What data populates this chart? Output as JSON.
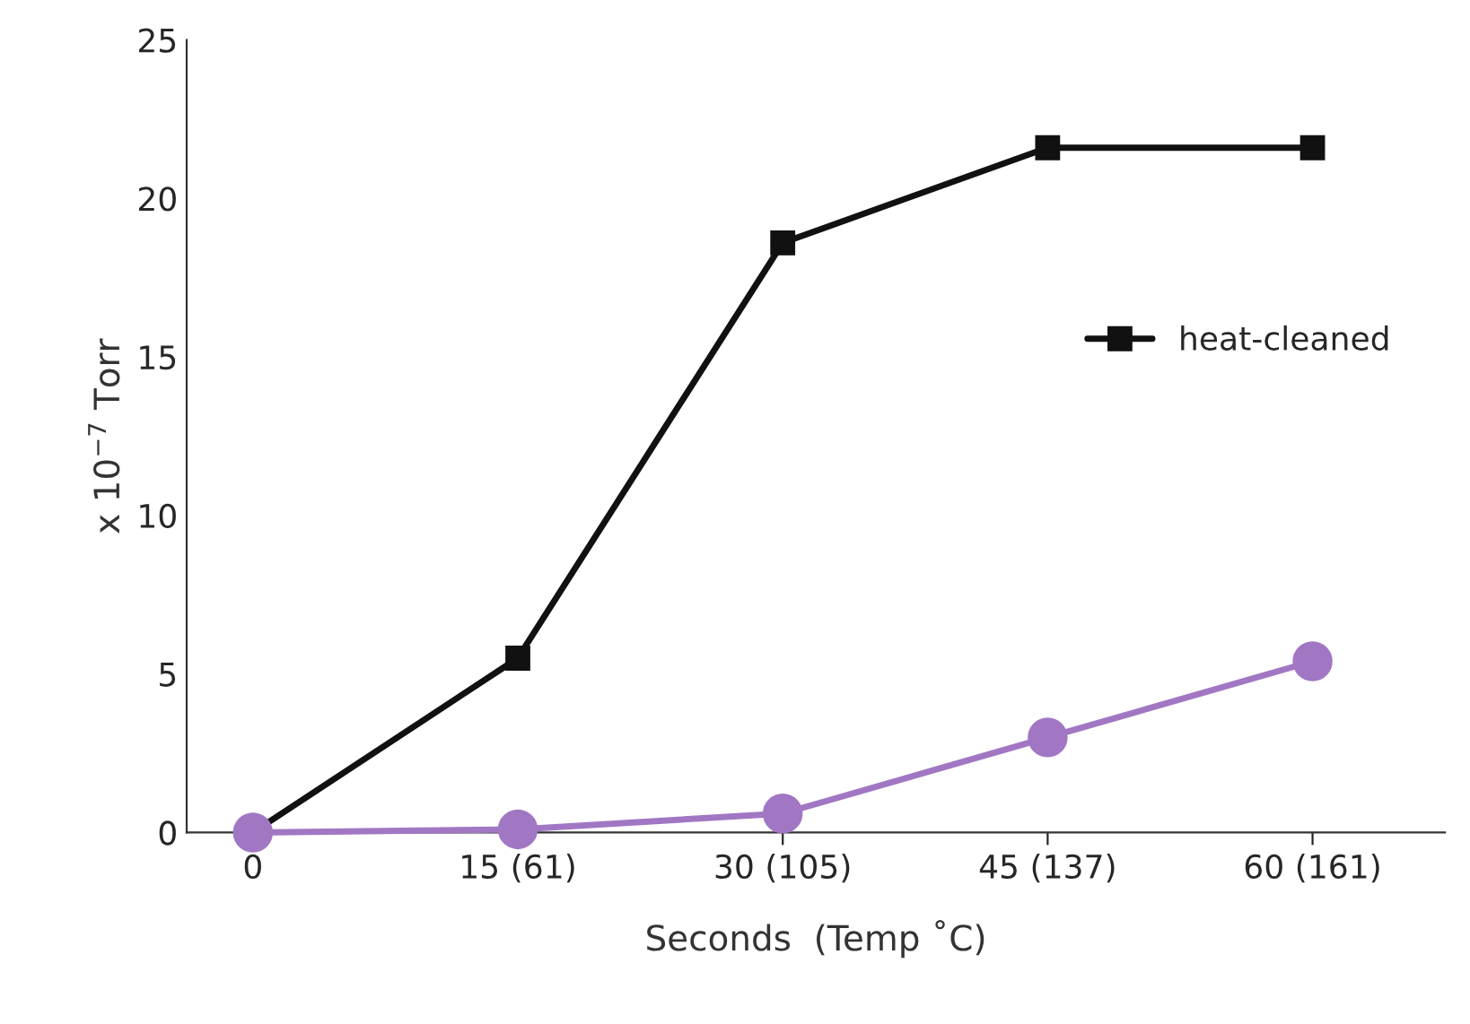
{
  "chart_data": {
    "type": "line",
    "xlabel": "Seconds  (Temp ˚C)",
    "ylabel": "x 10$^{−7}$ Torr",
    "categories": [
      "0",
      "15 (61)",
      "30 (105)",
      "45 (137)",
      "60 (161)"
    ],
    "series": [
      {
        "name": "heat-cleaned",
        "color": "#111111",
        "marker": "square",
        "values": [
          0,
          5.5,
          18.6,
          21.6,
          21.6
        ]
      },
      {
        "color": "#a177c4",
        "marker": "circle",
        "values": [
          0,
          0.1,
          0.6,
          3.0,
          5.4
        ]
      }
    ],
    "ylim": [
      0,
      25
    ],
    "yticks": [
      0,
      5,
      10,
      15,
      20,
      25
    ],
    "grid": false,
    "legend": "right",
    "line_style": "solid"
  }
}
